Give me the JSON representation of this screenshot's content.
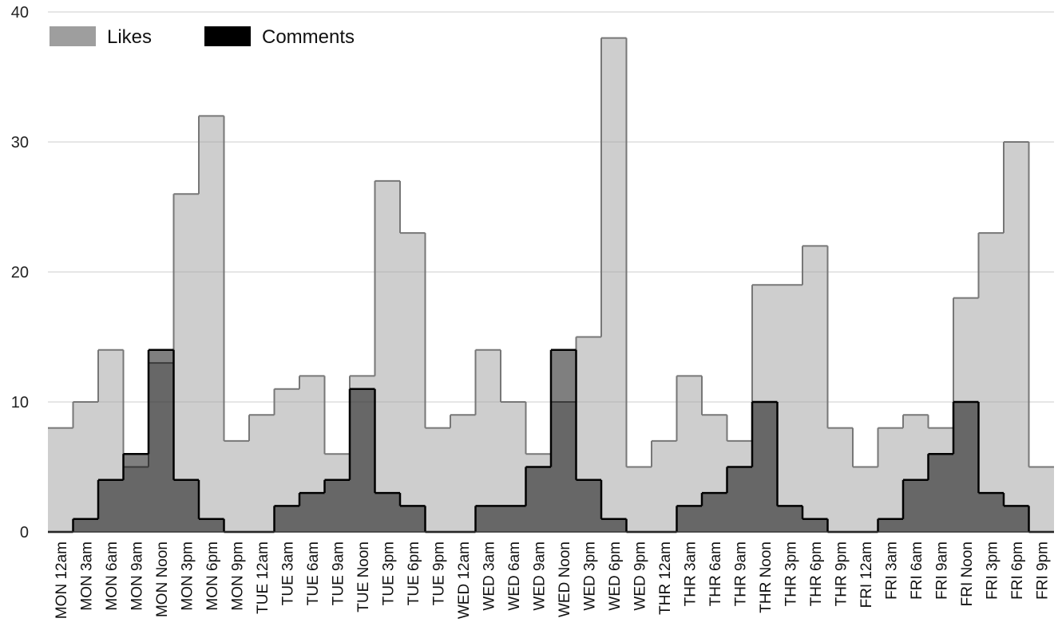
{
  "chart_data": {
    "type": "area",
    "style": "stepped",
    "categories": [
      "MON 12am",
      "MON 3am",
      "MON 6am",
      "MON 9am",
      "MON Noon",
      "MON 3pm",
      "MON 6pm",
      "MON 9pm",
      "TUE 12am",
      "TUE 3am",
      "TUE 6am",
      "TUE 9am",
      "TUE Noon",
      "TUE 3pm",
      "TUE 6pm",
      "TUE 9pm",
      "WED 12am",
      "WED 3am",
      "WED 6am",
      "WED 9am",
      "WED Noon",
      "WED 3pm",
      "WED 6pm",
      "WED 9pm",
      "THR 12am",
      "THR 3am",
      "THR 6am",
      "THR 9am",
      "THR Noon",
      "THR 3pm",
      "THR 6pm",
      "THR 9pm",
      "FRI 12am",
      "FRI 3am",
      "FRI 6am",
      "FRI 9am",
      "FRI Noon",
      "FRI 3pm",
      "FRI 6pm",
      "FRI 9pm"
    ],
    "series": [
      {
        "name": "Likes",
        "color": "#9e9e9e",
        "values": [
          8,
          10,
          14,
          5,
          13,
          26,
          32,
          7,
          9,
          11,
          12,
          6,
          12,
          27,
          23,
          8,
          9,
          14,
          10,
          6,
          10,
          15,
          38,
          5,
          7,
          12,
          9,
          7,
          19,
          19,
          22,
          8,
          5,
          8,
          9,
          8,
          18,
          23,
          30,
          5
        ]
      },
      {
        "name": "Comments",
        "color": "#000000",
        "values": [
          0,
          1,
          4,
          6,
          14,
          4,
          1,
          0,
          0,
          2,
          3,
          4,
          11,
          3,
          2,
          0,
          0,
          2,
          2,
          5,
          14,
          4,
          1,
          0,
          0,
          2,
          3,
          5,
          10,
          2,
          1,
          0,
          0,
          1,
          4,
          6,
          10,
          3,
          2,
          0
        ]
      }
    ],
    "ylim": [
      0,
      40
    ],
    "yticks": [
      "0",
      "10",
      "20",
      "30",
      "40"
    ],
    "grid": true,
    "legend_position": "top-left"
  }
}
